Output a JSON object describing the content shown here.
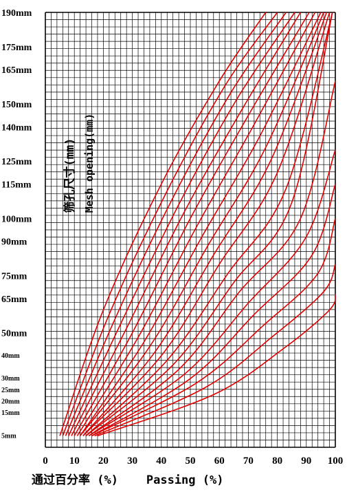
{
  "chart_data": {
    "type": "line",
    "xlabel": "通过百分率 (%)    Passing (%)",
    "ylabel": "筛孔尺寸(mm)",
    "ylabel2": "Mesh opening(mm)",
    "xlim": [
      0,
      100
    ],
    "ylim": [
      0,
      190
    ],
    "grid": true,
    "x_ticks": [
      0,
      10,
      20,
      30,
      40,
      50,
      60,
      70,
      80,
      90,
      100
    ],
    "x_tick_labels": [
      "0",
      "10",
      "20",
      "30",
      "40",
      "50",
      "60",
      "70",
      "80",
      "90",
      "100"
    ],
    "y_ticks": [
      {
        "label": "5mm",
        "value": 5,
        "small": true
      },
      {
        "label": "15mm",
        "value": 15,
        "small": true
      },
      {
        "label": "20mm",
        "value": 20,
        "small": true
      },
      {
        "label": "25mm",
        "value": 25,
        "small": true
      },
      {
        "label": "30mm",
        "value": 30,
        "small": true
      },
      {
        "label": "40mm",
        "value": 40,
        "small": true
      },
      {
        "label": "50mm",
        "value": 50,
        "small": false
      },
      {
        "label": "65mm",
        "value": 65,
        "small": false
      },
      {
        "label": "75mm",
        "value": 75,
        "small": false
      },
      {
        "label": "90mm",
        "value": 90,
        "small": false
      },
      {
        "label": "100mm",
        "value": 100,
        "small": false
      },
      {
        "label": "115mm",
        "value": 115,
        "small": false
      },
      {
        "label": "125mm",
        "value": 125,
        "small": false
      },
      {
        "label": "140mm",
        "value": 140,
        "small": false
      },
      {
        "label": "150mm",
        "value": 150,
        "small": false
      },
      {
        "label": "165mm",
        "value": 165,
        "small": false
      },
      {
        "label": "175mm",
        "value": 175,
        "small": false
      },
      {
        "label": "190mm",
        "value": 190,
        "small": false
      }
    ],
    "line_color": "#e00000",
    "series": [
      {
        "points": [
          [
            5,
            5
          ],
          [
            20,
            60
          ],
          [
            40,
            115
          ],
          [
            60,
            160
          ],
          [
            76,
            190
          ]
        ]
      },
      {
        "points": [
          [
            6,
            5
          ],
          [
            22,
            58
          ],
          [
            42,
            112
          ],
          [
            62,
            158
          ],
          [
            80,
            190
          ]
        ]
      },
      {
        "points": [
          [
            7,
            5
          ],
          [
            24,
            56
          ],
          [
            44,
            109
          ],
          [
            64,
            155
          ],
          [
            83,
            190
          ]
        ]
      },
      {
        "points": [
          [
            8,
            5
          ],
          [
            26,
            54
          ],
          [
            46,
            106
          ],
          [
            66,
            152
          ],
          [
            86,
            190
          ]
        ]
      },
      {
        "points": [
          [
            9,
            5
          ],
          [
            28,
            52
          ],
          [
            48,
            103
          ],
          [
            68,
            148
          ],
          [
            88,
            190
          ]
        ]
      },
      {
        "points": [
          [
            10,
            5
          ],
          [
            30,
            50
          ],
          [
            50,
            100
          ],
          [
            70,
            145
          ],
          [
            91,
            190
          ]
        ]
      },
      {
        "points": [
          [
            11,
            5
          ],
          [
            32,
            48
          ],
          [
            52,
            96
          ],
          [
            72,
            141
          ],
          [
            93,
            190
          ]
        ]
      },
      {
        "points": [
          [
            12,
            5
          ],
          [
            34,
            46
          ],
          [
            54,
            92
          ],
          [
            74,
            136
          ],
          [
            95,
            190
          ]
        ]
      },
      {
        "points": [
          [
            12,
            5
          ],
          [
            36,
            44
          ],
          [
            56,
            88
          ],
          [
            76,
            131
          ],
          [
            96,
            190
          ]
        ]
      },
      {
        "points": [
          [
            13,
            5
          ],
          [
            38,
            42
          ],
          [
            58,
            84
          ],
          [
            78,
            126
          ],
          [
            97,
            190
          ]
        ]
      },
      {
        "points": [
          [
            13,
            5
          ],
          [
            40,
            40
          ],
          [
            60,
            80
          ],
          [
            80,
            120
          ],
          [
            98,
            190
          ]
        ]
      },
      {
        "points": [
          [
            14,
            5
          ],
          [
            42,
            38
          ],
          [
            63,
            76
          ],
          [
            83,
            113
          ],
          [
            99,
            190
          ]
        ]
      },
      {
        "points": [
          [
            14,
            5
          ],
          [
            44,
            36
          ],
          [
            65,
            72
          ],
          [
            85,
            107
          ],
          [
            99,
            190
          ]
        ]
      },
      {
        "points": [
          [
            15,
            5
          ],
          [
            46,
            34
          ],
          [
            67,
            68
          ],
          [
            88,
            100
          ],
          [
            100,
            160
          ]
        ]
      },
      {
        "points": [
          [
            15,
            5
          ],
          [
            48,
            32
          ],
          [
            70,
            63
          ],
          [
            90,
            92
          ],
          [
            100,
            130
          ]
        ]
      },
      {
        "points": [
          [
            16,
            5
          ],
          [
            50,
            30
          ],
          [
            72,
            58
          ],
          [
            92,
            84
          ],
          [
            100,
            115
          ]
        ]
      },
      {
        "points": [
          [
            16,
            5
          ],
          [
            52,
            28
          ],
          [
            75,
            53
          ],
          [
            94,
            76
          ],
          [
            100,
            100
          ]
        ]
      },
      {
        "points": [
          [
            17,
            5
          ],
          [
            55,
            26
          ],
          [
            78,
            48
          ],
          [
            96,
            68
          ],
          [
            100,
            80
          ]
        ]
      },
      {
        "points": [
          [
            18,
            5
          ],
          [
            58,
            23
          ],
          [
            82,
            43
          ],
          [
            98,
            60
          ],
          [
            100,
            67
          ]
        ]
      }
    ]
  }
}
